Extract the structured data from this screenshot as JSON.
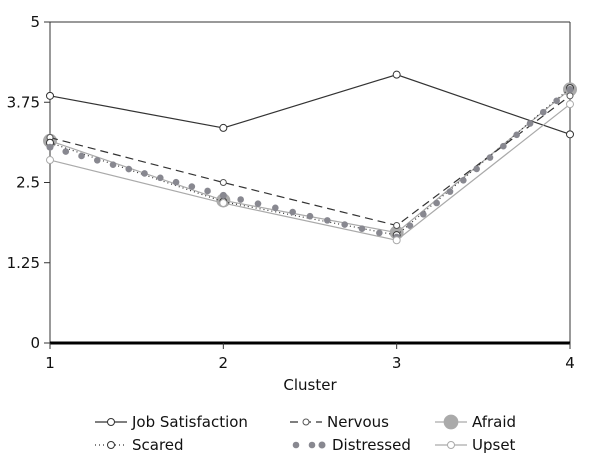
{
  "chart_data": {
    "type": "line",
    "title": "",
    "xlabel": "Cluster",
    "ylabel": "",
    "x": [
      1,
      2,
      3,
      4
    ],
    "x_tick_labels": [
      "1",
      "2",
      "3",
      "4"
    ],
    "y_tick_labels": [
      "0",
      "1.25",
      "2.5",
      "3.75",
      "5"
    ],
    "y_ticks": [
      0,
      1.25,
      2.5,
      3.75,
      5
    ],
    "xlim": [
      1,
      4
    ],
    "ylim": [
      0,
      5
    ],
    "grid": false,
    "legend_position": "bottom",
    "series": [
      {
        "name": "Job Satisfaction",
        "values": [
          3.85,
          3.35,
          4.18,
          3.25
        ],
        "color": "#333333",
        "style": "solid",
        "marker": "open-circle"
      },
      {
        "name": "Nervous",
        "values": [
          3.2,
          2.5,
          1.83,
          3.85
        ],
        "color": "#333333",
        "style": "dashed",
        "marker": "open-circle-small"
      },
      {
        "name": "Afraid",
        "values": [
          3.15,
          2.22,
          1.72,
          3.95
        ],
        "color": "#aaaaaa",
        "style": "solid",
        "marker": "large-filled-circle"
      },
      {
        "name": "Scared",
        "values": [
          3.12,
          2.2,
          1.68,
          3.97
        ],
        "color": "#333333",
        "style": "dotted",
        "marker": "open-circle"
      },
      {
        "name": "Distressed",
        "values": [
          3.05,
          2.3,
          1.65,
          3.95
        ],
        "color": "#888890",
        "style": "dots",
        "marker": "filled-dot"
      },
      {
        "name": "Upset",
        "values": [
          2.85,
          2.18,
          1.6,
          3.72
        ],
        "color": "#aaaaaa",
        "style": "solid",
        "marker": "open-circle"
      }
    ]
  }
}
